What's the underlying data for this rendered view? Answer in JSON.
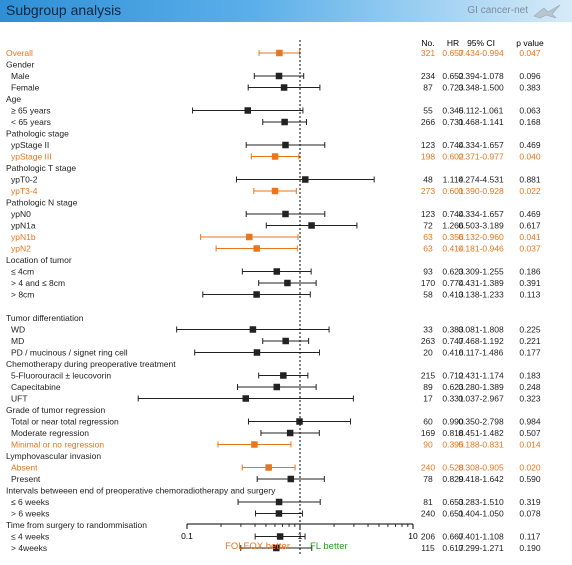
{
  "title": "Subgroup analysis",
  "brand": "GI cancer-net",
  "colors": {
    "orange": "#e8761e",
    "black": "#222222",
    "green": "#2a9c2a"
  },
  "columns": {
    "no": "No.",
    "hr": "HR",
    "ci": "95% CI",
    "p": "p value"
  },
  "axis": {
    "ticks": [
      "0.1",
      "1",
      "10"
    ],
    "left_label": "FOLFOX better",
    "right_label": "FL better"
  },
  "chart_data": {
    "type": "forest",
    "x_scale": "log",
    "xlim": [
      0.1,
      10
    ],
    "reference_line": 1,
    "rows": [
      {
        "kind": "item",
        "label": "Overall",
        "indent": 0,
        "orange": true,
        "n": "321",
        "hr": 0.657,
        "lo": 0.434,
        "hi": 0.994,
        "hr_text": "0.657",
        "ci": "0.434-0.994",
        "p": "0.047"
      },
      {
        "kind": "header",
        "label": "Gender"
      },
      {
        "kind": "item",
        "label": "Male",
        "indent": 1,
        "n": "234",
        "hr": 0.652,
        "lo": 0.394,
        "hi": 1.078,
        "hr_text": "0.652",
        "ci": "0.394-1.078",
        "p": "0.096"
      },
      {
        "kind": "item",
        "label": "Female",
        "indent": 1,
        "n": "87",
        "hr": 0.723,
        "lo": 0.348,
        "hi": 1.5,
        "hr_text": "0.723",
        "ci": "0.348-1.500",
        "p": "0.383"
      },
      {
        "kind": "header",
        "label": "Age"
      },
      {
        "kind": "item",
        "label": "≥ 65 years",
        "indent": 1,
        "n": "55",
        "hr": 0.345,
        "lo": 0.112,
        "hi": 1.061,
        "hr_text": "0.345",
        "ci": "0.112-1.061",
        "p": "0.063"
      },
      {
        "kind": "item",
        "label": "< 65 years",
        "indent": 1,
        "n": "266",
        "hr": 0.731,
        "lo": 0.468,
        "hi": 1.141,
        "hr_text": "0.731",
        "ci": "0.468-1.141",
        "p": "0.168"
      },
      {
        "kind": "header",
        "label": "Pathologic stage"
      },
      {
        "kind": "item",
        "label": "ypStage II",
        "indent": 1,
        "n": "123",
        "hr": 0.744,
        "lo": 0.334,
        "hi": 1.657,
        "hr_text": "0.744",
        "ci": "0.334-1.657",
        "p": "0.469"
      },
      {
        "kind": "item",
        "label": "ypStage III",
        "indent": 1,
        "orange": true,
        "n": "198",
        "hr": 0.602,
        "lo": 0.371,
        "hi": 0.977,
        "hr_text": "0.602",
        "ci": "0.371-0.977",
        "p": "0.040"
      },
      {
        "kind": "header",
        "label": "Pathologic T stage"
      },
      {
        "kind": "item",
        "label": "ypT0-2",
        "indent": 1,
        "n": "48",
        "hr": 1.114,
        "lo": 0.274,
        "hi": 4.531,
        "hr_text": "1.114",
        "ci": "0.274-4.531",
        "p": "0.881"
      },
      {
        "kind": "item",
        "label": "ypT3-4",
        "indent": 1,
        "orange": true,
        "n": "273",
        "hr": 0.601,
        "lo": 0.39,
        "hi": 0.928,
        "hr_text": "0.601",
        "ci": "0.390-0.928",
        "p": "0.022"
      },
      {
        "kind": "header",
        "label": "Pathologic N stage"
      },
      {
        "kind": "item",
        "label": "ypN0",
        "indent": 1,
        "n": "123",
        "hr": 0.744,
        "lo": 0.334,
        "hi": 1.657,
        "hr_text": "0.744",
        "ci": "0.334-1.657",
        "p": "0.469"
      },
      {
        "kind": "item",
        "label": "ypN1a",
        "indent": 1,
        "n": "72",
        "hr": 1.266,
        "lo": 0.503,
        "hi": 3.189,
        "hr_text": "1.266",
        "ci": "0.503-3.189",
        "p": "0.617"
      },
      {
        "kind": "item",
        "label": "ypN1b",
        "indent": 1,
        "orange": true,
        "n": "63",
        "hr": 0.356,
        "lo": 0.132,
        "hi": 0.96,
        "hr_text": "0.356",
        "ci": "0.132-0.960",
        "p": "0.041"
      },
      {
        "kind": "item",
        "label": "ypN2",
        "indent": 1,
        "orange": true,
        "n": "63",
        "hr": 0.414,
        "lo": 0.181,
        "hi": 0.946,
        "hr_text": "0.414",
        "ci": "0.181-0.946",
        "p": "0.037"
      },
      {
        "kind": "header",
        "label": "Location of tumor"
      },
      {
        "kind": "item",
        "label": "≤ 4cm",
        "indent": 1,
        "n": "93",
        "hr": 0.623,
        "lo": 0.309,
        "hi": 1.255,
        "hr_text": "0.623",
        "ci": "0.309-1.255",
        "p": "0.186"
      },
      {
        "kind": "item",
        "label": "> 4 and ≤ 8cm",
        "indent": 1,
        "n": "170",
        "hr": 0.774,
        "lo": 0.431,
        "hi": 1.389,
        "hr_text": "0.774",
        "ci": "0.431-1.389",
        "p": "0.391"
      },
      {
        "kind": "item",
        "label": "> 8cm",
        "indent": 1,
        "n": "58",
        "hr": 0.413,
        "lo": 0.138,
        "hi": 1.233,
        "hr_text": "0.413",
        "ci": "0.138-1.233",
        "p": "0.113"
      },
      {
        "kind": "gap"
      },
      {
        "kind": "header",
        "label": "Tumor differentiation"
      },
      {
        "kind": "item",
        "label": "WD",
        "indent": 1,
        "n": "33",
        "hr": 0.383,
        "lo": 0.081,
        "hi": 1.808,
        "hr_text": "0.383",
        "ci": "0.081-1.808",
        "p": "0.225"
      },
      {
        "kind": "item",
        "label": "MD",
        "indent": 1,
        "n": "263",
        "hr": 0.747,
        "lo": 0.468,
        "hi": 1.192,
        "hr_text": "0.747",
        "ci": "0.468-1.192",
        "p": "0.221"
      },
      {
        "kind": "item",
        "label": "PD / mucinous / signet ring cell",
        "indent": 1,
        "n": "20",
        "hr": 0.416,
        "lo": 0.117,
        "hi": 1.486,
        "hr_text": "0.416",
        "ci": "0.117-1.486",
        "p": "0.177"
      },
      {
        "kind": "header",
        "label": "Chemotherapy during preoperative treatment"
      },
      {
        "kind": "item",
        "label": "5-Fluorouracil ± leucovorin",
        "indent": 1,
        "n": "215",
        "hr": 0.712,
        "lo": 0.431,
        "hi": 1.174,
        "hr_text": "0.712",
        "ci": "0.431-1.174",
        "p": "0.183"
      },
      {
        "kind": "item",
        "label": "Capecitabine",
        "indent": 1,
        "n": "89",
        "hr": 0.623,
        "lo": 0.28,
        "hi": 1.389,
        "hr_text": "0.623",
        "ci": "0.280-1.389",
        "p": "0.248"
      },
      {
        "kind": "item",
        "label": "UFT",
        "indent": 1,
        "n": "17",
        "hr": 0.331,
        "lo": 0.037,
        "hi": 2.967,
        "hr_text": "0.331",
        "ci": "0.037-2.967",
        "p": "0.323"
      },
      {
        "kind": "header",
        "label": "Grade of tumor regression"
      },
      {
        "kind": "item",
        "label": "Total or near total regression",
        "indent": 1,
        "n": "60",
        "hr": 0.99,
        "lo": 0.35,
        "hi": 2.798,
        "hr_text": "0.990",
        "ci": "0.350-2.798",
        "p": "0.984"
      },
      {
        "kind": "item",
        "label": "Moderate regression",
        "indent": 1,
        "n": "169",
        "hr": 0.818,
        "lo": 0.451,
        "hi": 1.482,
        "hr_text": "0.818",
        "ci": "0.451-1.482",
        "p": "0.507"
      },
      {
        "kind": "item",
        "label": "Minimal or no regression",
        "indent": 1,
        "orange": true,
        "n": "90",
        "hr": 0.395,
        "lo": 0.188,
        "hi": 0.831,
        "hr_text": "0.395",
        "ci": "0.188-0.831",
        "p": "0.014"
      },
      {
        "kind": "header",
        "label": "Lymphovascular invasion"
      },
      {
        "kind": "item",
        "label": "Absent",
        "indent": 1,
        "orange": true,
        "n": "240",
        "hr": 0.528,
        "lo": 0.308,
        "hi": 0.905,
        "hr_text": "0.528",
        "ci": "0.308-0.905",
        "p": "0.020"
      },
      {
        "kind": "item",
        "label": "Present",
        "indent": 1,
        "n": "78",
        "hr": 0.829,
        "lo": 0.418,
        "hi": 1.642,
        "hr_text": "0.829",
        "ci": "0.418-1.642",
        "p": "0.590"
      },
      {
        "kind": "header",
        "label": "Intervals betweeen end of preoperative chemoradiotherapy and surgery"
      },
      {
        "kind": "item",
        "label": "≤ 6 weeks",
        "indent": 1,
        "n": "81",
        "hr": 0.653,
        "lo": 0.283,
        "hi": 1.51,
        "hr_text": "0.653",
        "ci": "0.283-1.510",
        "p": "0.319"
      },
      {
        "kind": "item",
        "label": "> 6 weeks",
        "indent": 1,
        "n": "240",
        "hr": 0.651,
        "lo": 0.404,
        "hi": 1.05,
        "hr_text": "0.651",
        "ci": "0.404-1.050",
        "p": "0.078"
      },
      {
        "kind": "header",
        "label": "Time from surgery to randommisation"
      },
      {
        "kind": "item",
        "label": "≤ 4 weeks",
        "indent": 1,
        "n": "206",
        "hr": 0.667,
        "lo": 0.401,
        "hi": 1.108,
        "hr_text": "0.667",
        "ci": "0.401-1.108",
        "p": "0.117"
      },
      {
        "kind": "item",
        "label": "> 4weeks",
        "indent": 1,
        "n": "115",
        "hr": 0.617,
        "lo": 0.299,
        "hi": 1.271,
        "hr_text": "0.617",
        "ci": "0.299-1.271",
        "p": "0.190"
      }
    ]
  }
}
